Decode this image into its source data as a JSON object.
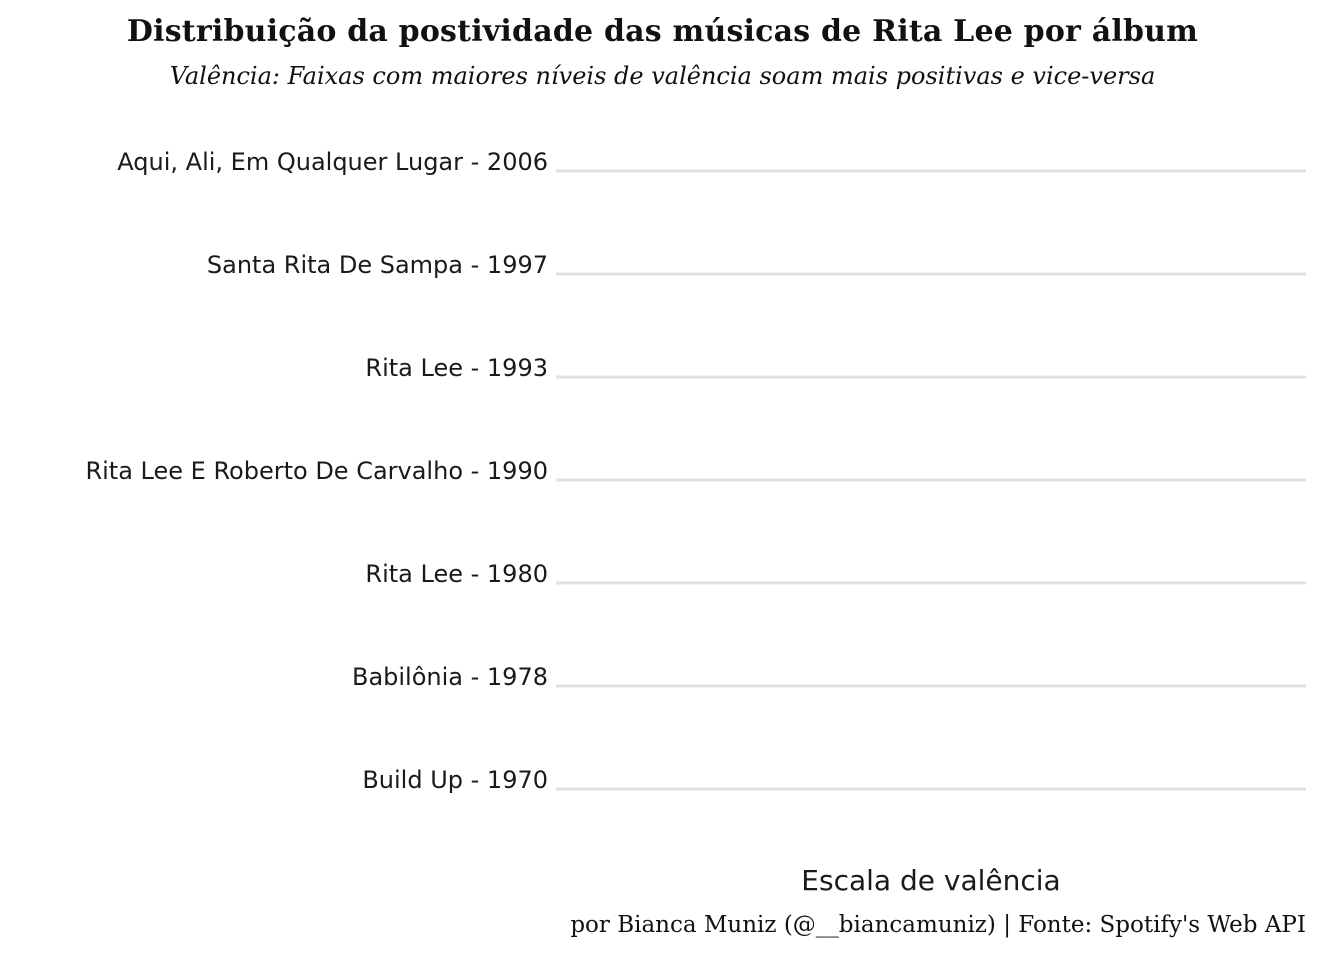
{
  "chart_data": {
    "type": "ridgeline",
    "title": "Distribuição da postividade das músicas de Rita Lee por álbum",
    "subtitle": "Valência: Faixas com maiores níveis de valência soam mais positivas e vice-versa",
    "xlabel": "Escala de valência",
    "ylabel": "",
    "caption": "por Bianca Muniz (@__biancamuniz) | Fonte: Spotify's Web API",
    "categories": [
      "Aqui, Ali, Em Qualquer Lugar - 2006",
      "Santa Rita De Sampa - 1997",
      "Rita Lee - 1993",
      "Rita Lee E Roberto De Carvalho - 1990",
      "Rita Lee - 1980",
      "Babilônia - 1978",
      "Build Up - 1970"
    ],
    "grid": true,
    "legend": "none",
    "colors": {
      "gridline": "#e0e0e0",
      "text": "#1a1a1a",
      "background": "#ffffff"
    }
  }
}
